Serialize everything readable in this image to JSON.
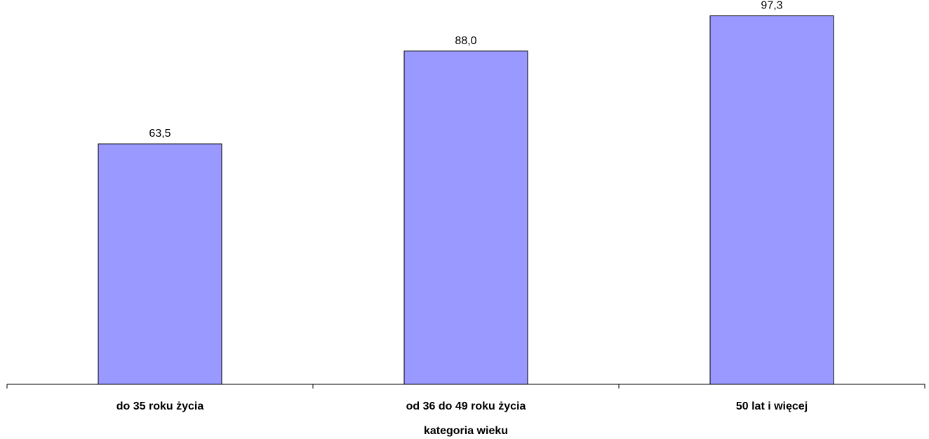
{
  "chart_data": {
    "type": "bar",
    "categories": [
      "do 35 roku życia",
      "od 36 do 49 roku życia",
      "50 lat i więcej"
    ],
    "values": [
      63.5,
      88.0,
      97.3
    ],
    "value_labels": [
      "63,5",
      "88,0",
      "97,3"
    ],
    "xlabel": "kategoria wieku",
    "ylim": [
      0,
      100
    ],
    "grid": false,
    "legend": "none",
    "bar_color": "#9999ff"
  }
}
